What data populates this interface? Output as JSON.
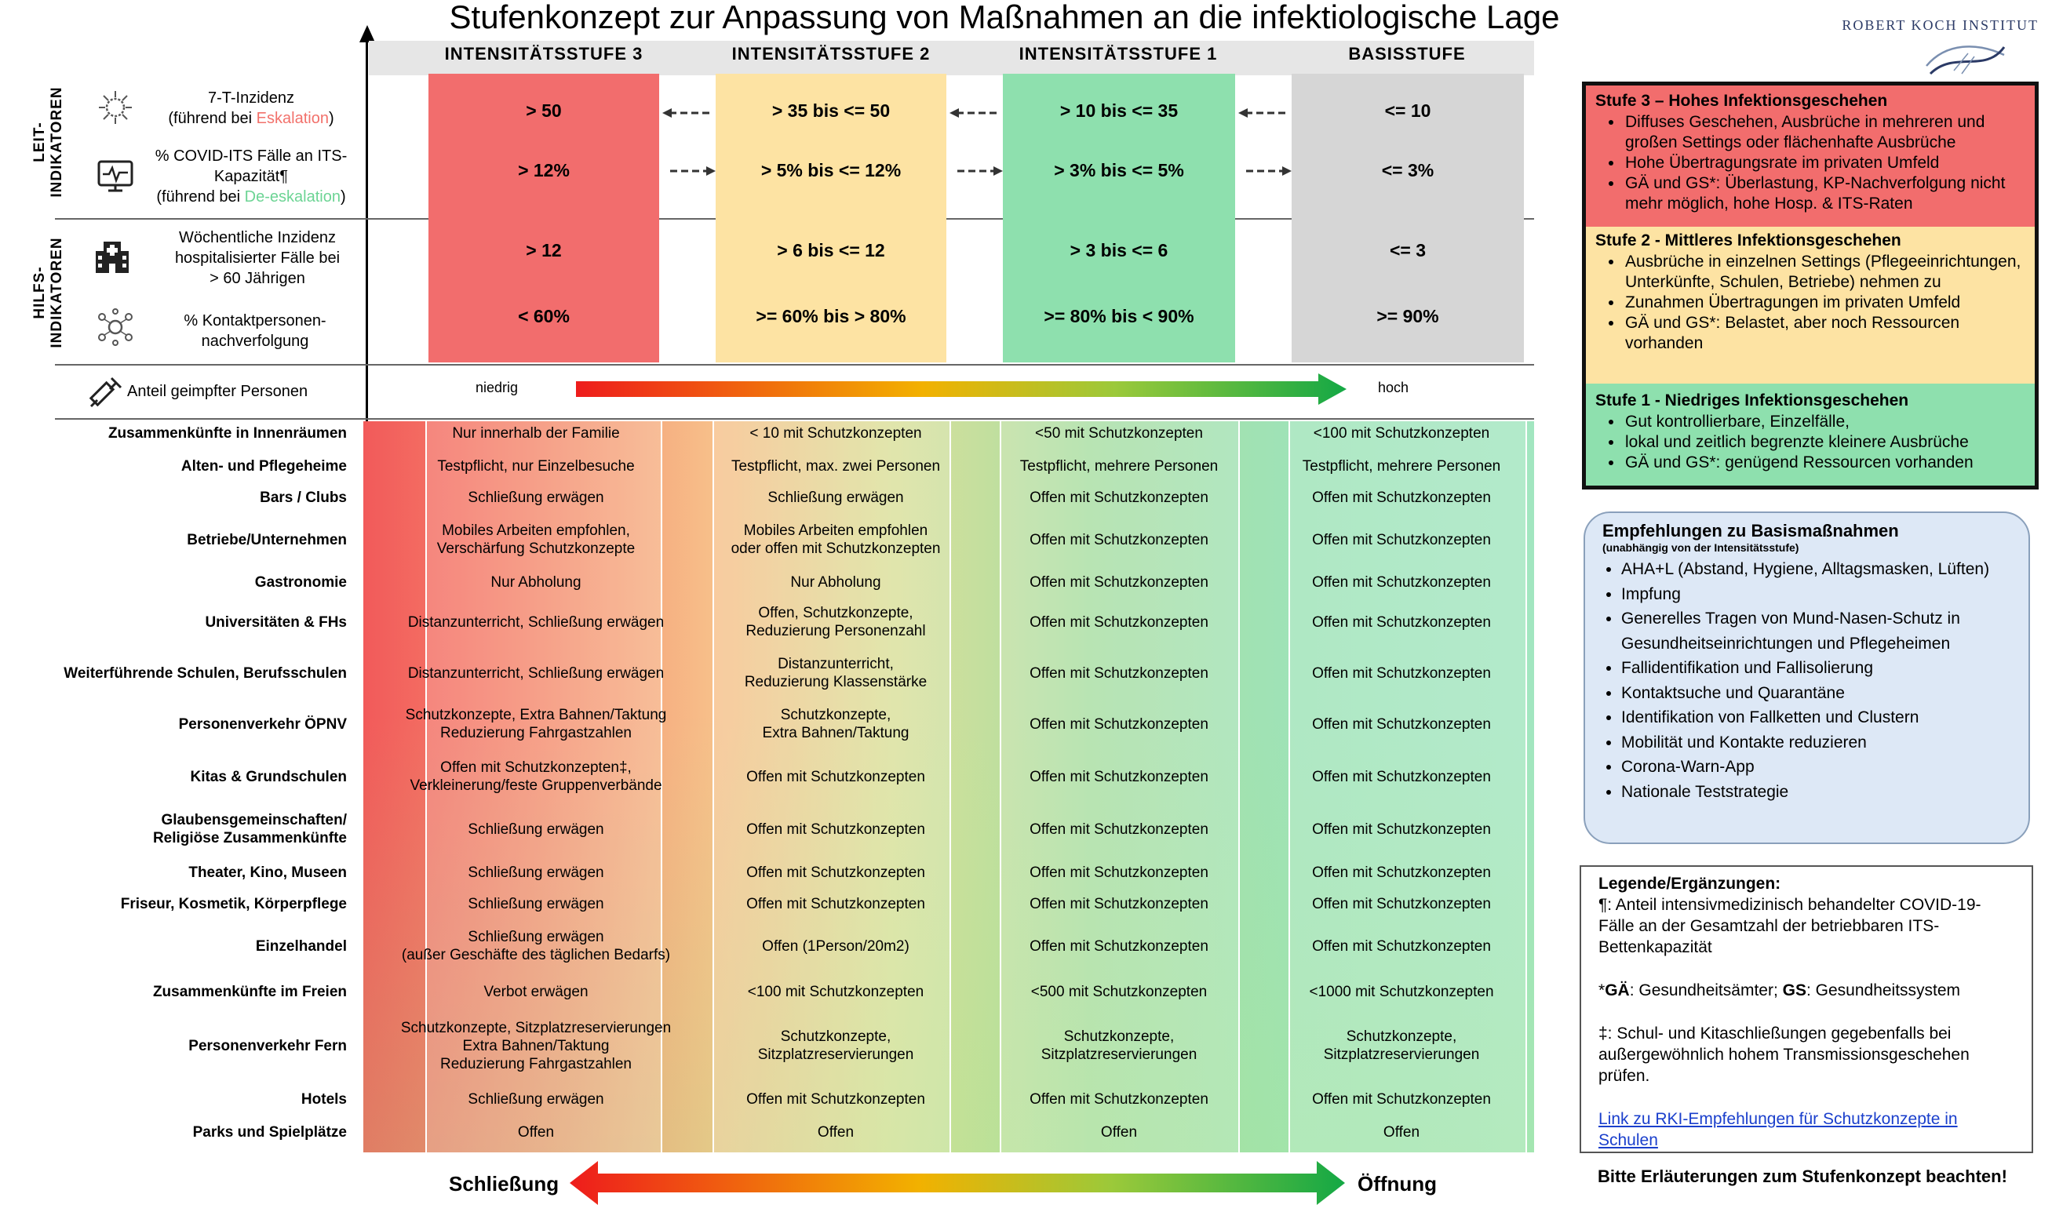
{
  "title": "Stufenkonzept zur Anpassung von Maßnahmen an die infektiologische Lage",
  "logo": {
    "text": "ROBERT KOCH INSTITUT"
  },
  "levels": [
    "INTENSITÄTSSTUFE 3",
    "INTENSITÄTSSTUFE 2",
    "INTENSITÄTSSTUFE 1",
    "BASISSTUFE"
  ],
  "colors": {
    "stufe3": "#f26d6d",
    "stufe2": "#fde3a3",
    "stufe1": "#8ee0ae",
    "basis": "#d6d6d6"
  },
  "leitindikatoren": {
    "label_line1": "LEIT-",
    "label_line2": "INDIKATOREN",
    "rows": [
      {
        "line1": "7-T-Inzidenz",
        "line2_pre": "(führend bei ",
        "line2_hl": "Eskalation",
        "line2_post": ")",
        "icon": "virus-icon",
        "values": [
          "> 50",
          "> 35 bis <= 50",
          "> 10 bis <= 35",
          "<= 10"
        ]
      },
      {
        "line1": "% COVID-ITS Fälle an ITS-",
        "line2": "Kapazität¶",
        "line3_pre": "(führend bei ",
        "line3_hl": "De-eskalation",
        "line3_post": ")",
        "icon": "monitor-icon",
        "values": [
          "> 12%",
          "> 5% bis <= 12%",
          "> 3% bis <= 5%",
          "<= 3%"
        ]
      }
    ]
  },
  "hilfsindikatoren": {
    "label_line1": "HILFS-",
    "label_line2": "INDIKATOREN",
    "rows": [
      {
        "line1": "Wöchentliche Inzidenz",
        "line2": "hospitalisierter Fälle bei",
        "line3": "> 60 Jährigen",
        "icon": "hospital-icon",
        "values": [
          "> 12",
          "> 6 bis <= 12",
          "> 3 bis <= 6",
          "<= 3"
        ]
      },
      {
        "line1": "% Kontaktpersonen-",
        "line2": "nachverfolgung",
        "icon": "contacts-icon",
        "values": [
          "< 60%",
          ">= 60% bis > 80%",
          ">= 80% bis < 90%",
          ">= 90%"
        ]
      }
    ]
  },
  "vaccination": {
    "label": "Anteil geimpfter Personen",
    "low": "niedrig",
    "high": "hoch",
    "icon": "syringe-icon"
  },
  "measures": [
    {
      "label": "Zusammenkünfte in Innenräumen",
      "cells": [
        [
          "Nur innerhalb der Familie"
        ],
        [
          "< 10 mit Schutzkonzepten"
        ],
        [
          "<50 mit Schutzkonzepten"
        ],
        [
          "<100 mit Schutzkonzepten"
        ]
      ]
    },
    {
      "label": "Alten- und Pflegeheime",
      "cells": [
        [
          "Testpflicht, nur Einzelbesuche"
        ],
        [
          "Testpflicht, max. zwei Personen"
        ],
        [
          "Testpflicht, mehrere Personen"
        ],
        [
          "Testpflicht, mehrere Personen"
        ]
      ]
    },
    {
      "label": "Bars / Clubs",
      "cells": [
        [
          "Schließung erwägen"
        ],
        [
          "Schließung erwägen"
        ],
        [
          "Offen mit Schutzkonzepten"
        ],
        [
          "Offen mit Schutzkonzepten"
        ]
      ]
    },
    {
      "label": "Betriebe/Unternehmen",
      "cells": [
        [
          "Mobiles Arbeiten empfohlen,",
          "Verschärfung Schutzkonzepte"
        ],
        [
          "Mobiles Arbeiten empfohlen",
          "oder offen mit Schutzkonzepten"
        ],
        [
          "Offen mit Schutzkonzepten"
        ],
        [
          "Offen mit Schutzkonzepten"
        ]
      ]
    },
    {
      "label": "Gastronomie",
      "cells": [
        [
          "Nur Abholung"
        ],
        [
          "Nur Abholung"
        ],
        [
          "Offen mit Schutzkonzepten"
        ],
        [
          "Offen mit Schutzkonzepten"
        ]
      ]
    },
    {
      "label": "Universitäten & FHs",
      "cells": [
        [
          "Distanzunterricht, Schließung erwägen"
        ],
        [
          "Offen, Schutzkonzepte,",
          "Reduzierung Personenzahl"
        ],
        [
          "Offen mit Schutzkonzepten"
        ],
        [
          "Offen mit Schutzkonzepten"
        ]
      ]
    },
    {
      "label": "Weiterführende Schulen, Berufsschulen",
      "cells": [
        [
          "Distanzunterricht, Schließung erwägen"
        ],
        [
          "Distanzunterricht,",
          "Reduzierung Klassenstärke"
        ],
        [
          "Offen mit Schutzkonzepten"
        ],
        [
          "Offen mit Schutzkonzepten"
        ]
      ]
    },
    {
      "label": "Personenverkehr ÖPNV",
      "cells": [
        [
          "Schutzkonzepte, Extra Bahnen/Taktung",
          "Reduzierung Fahrgastzahlen"
        ],
        [
          "Schutzkonzepte,",
          "Extra Bahnen/Taktung"
        ],
        [
          "Offen mit Schutzkonzepten"
        ],
        [
          "Offen mit Schutzkonzepten"
        ]
      ]
    },
    {
      "label": "Kitas & Grundschulen",
      "cells": [
        [
          "Offen mit Schutzkonzepten‡,",
          "Verkleinerung/feste Gruppenverbände"
        ],
        [
          "Offen mit Schutzkonzepten"
        ],
        [
          "Offen mit Schutzkonzepten"
        ],
        [
          "Offen mit Schutzkonzepten"
        ]
      ]
    },
    {
      "label": "Glaubensgemeinschaften/|Religiöse Zusammenkünfte",
      "cells": [
        [
          "Schließung erwägen"
        ],
        [
          "Offen mit Schutzkonzepten"
        ],
        [
          "Offen mit Schutzkonzepten"
        ],
        [
          "Offen mit Schutzkonzepten"
        ]
      ]
    },
    {
      "label": "Theater, Kino, Museen",
      "cells": [
        [
          "Schließung erwägen"
        ],
        [
          "Offen mit Schutzkonzepten"
        ],
        [
          "Offen mit Schutzkonzepten"
        ],
        [
          "Offen mit Schutzkonzepten"
        ]
      ]
    },
    {
      "label": "Friseur, Kosmetik, Körperpflege",
      "cells": [
        [
          "Schließung erwägen"
        ],
        [
          "Offen mit Schutzkonzepten"
        ],
        [
          "Offen mit Schutzkonzepten"
        ],
        [
          "Offen mit Schutzkonzepten"
        ]
      ]
    },
    {
      "label": "Einzelhandel",
      "cells": [
        [
          "Schließung erwägen",
          "(außer Geschäfte des täglichen Bedarfs)"
        ],
        [
          "Offen (1Person/20m2)"
        ],
        [
          "Offen mit Schutzkonzepten"
        ],
        [
          "Offen mit Schutzkonzepten"
        ]
      ]
    },
    {
      "label": "Zusammenkünfte im Freien",
      "cells": [
        [
          "Verbot erwägen"
        ],
        [
          "<100 mit Schutzkonzepten"
        ],
        [
          "<500 mit Schutzkonzepten"
        ],
        [
          "<1000 mit Schutzkonzepten"
        ]
      ]
    },
    {
      "label": "Personenverkehr Fern",
      "cells": [
        [
          "Schutzkonzepte, Sitzplatzreservierungen",
          "Extra Bahnen/Taktung",
          "Reduzierung Fahrgastzahlen"
        ],
        [
          "Schutzkonzepte,",
          "Sitzplatzreservierungen"
        ],
        [
          "Schutzkonzepte,",
          "Sitzplatzreservierungen"
        ],
        [
          "Schutzkonzepte,",
          "Sitzplatzreservierungen"
        ]
      ]
    },
    {
      "label": "Hotels",
      "cells": [
        [
          "Schließung erwägen"
        ],
        [
          "Offen mit Schutzkonzepten"
        ],
        [
          "Offen mit Schutzkonzepten"
        ],
        [
          "Offen mit Schutzkonzepten"
        ]
      ]
    },
    {
      "label": "Parks und Spielplätze",
      "cells": [
        [
          "Offen"
        ],
        [
          "Offen"
        ],
        [
          "Offen"
        ],
        [
          "Offen"
        ]
      ]
    }
  ],
  "bottom_arrow": {
    "left": "Schließung",
    "right": "Öffnung"
  },
  "stufen": [
    {
      "title": "Stufe 3 – Hohes Infektionsgeschehen",
      "color": "#f26d6d",
      "items": [
        "Diffuses Geschehen, Ausbrüche in mehreren und großen Settings oder flächenhafte Ausbrüche",
        "Hohe Übertragungsrate im privaten Umfeld",
        "GÄ und GS*: Überlastung, KP-Nachverfolgung nicht mehr möglich, hohe Hosp. & ITS-Raten"
      ]
    },
    {
      "title": "Stufe 2 - Mittleres Infektionsgeschehen",
      "color": "#fde3a3",
      "items": [
        "Ausbrüche in einzelnen Settings (Pflegeeinrichtungen, Unterkünfte, Schulen, Betriebe) nehmen zu",
        "Zunahmen Übertragungen im privaten Umfeld",
        "GÄ und GS*: Belastet, aber noch Ressourcen vorhanden"
      ]
    },
    {
      "title": "Stufe 1 - Niedriges Infektionsgeschehen",
      "color": "#8ee0ae",
      "items": [
        "Gut kontrollierbare, Einzelfälle,",
        "lokal und zeitlich begrenzte kleinere Ausbrüche",
        "GÄ und GS*: genügend Ressourcen vorhanden"
      ]
    }
  ],
  "basis": {
    "title": "Empfehlungen zu Basismaßnahmen",
    "subtitle": "(unabhängig von der Intensitätsstufe)",
    "items": [
      "AHA+L (Abstand, Hygiene, Alltagsmasken, Lüften)",
      "Impfung",
      "Generelles Tragen von Mund-Nasen-Schutz in Gesundheitseinrichtungen und Pflegeheimen",
      "Fallidentifikation und Fallisolierung",
      "Kontaktsuche und Quarantäne",
      "Identifikation von Fallketten und Clustern",
      "Mobilität und Kontakte reduzieren",
      "Corona-Warn-App",
      "Nationale Teststrategie"
    ]
  },
  "legend": {
    "title": "Legende/Ergänzungen:",
    "note1": "¶: Anteil intensivmedizinisch behandelter COVID-19-Fälle an der Gesamtzahl der betriebbaren ITS-Bettenkapazität",
    "note2_pre": "*",
    "note2_b1": "GÄ",
    "note2_mid": ": Gesundheitsämter; ",
    "note2_b2": "GS",
    "note2_post": ": Gesundheitssystem",
    "note3": "‡: Schul- und Kitaschließungen gegebenfalls bei außergewöhnlich hohem Transmissionsgeschehen prüfen.",
    "link": "Link zu RKI-Empfehlungen für Schutzkonzepte in Schulen"
  },
  "footnote": "Bitte Erläuterungen zum Stufenkonzept beachten!"
}
